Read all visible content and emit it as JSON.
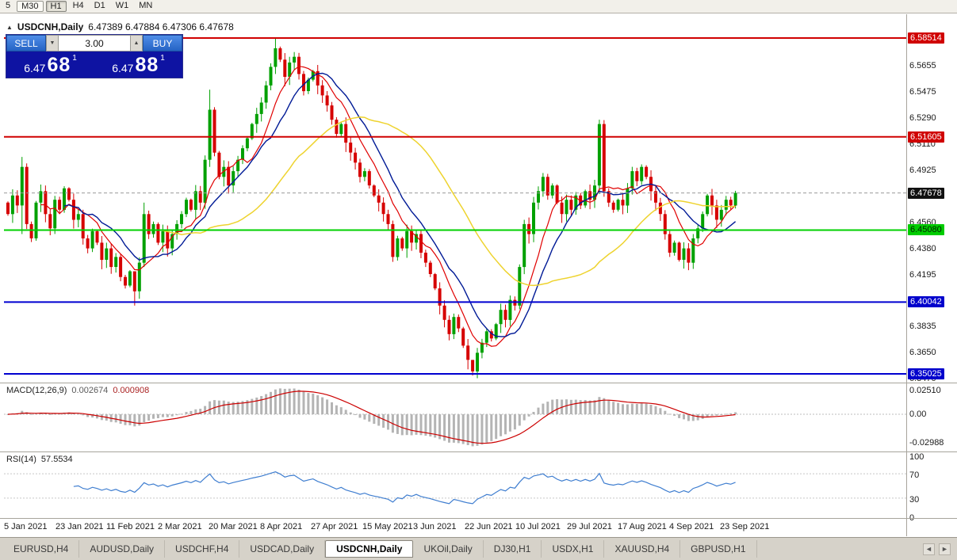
{
  "toolbar": {
    "periods": [
      {
        "label": "5"
      },
      {
        "label": "M30",
        "boxed": true
      },
      {
        "label": "H1",
        "boxed": true,
        "active": true
      },
      {
        "label": "H4"
      },
      {
        "label": "D1"
      },
      {
        "label": "W1"
      },
      {
        "label": "MN"
      }
    ]
  },
  "chart": {
    "marker": "▲",
    "symbol": "USDCNH,Daily",
    "ohlc_text": "6.47389 6.47884 6.47306 6.47678",
    "up_color": "#00A000",
    "down_color": "#D60000",
    "mas": [
      {
        "period": 8,
        "color": "#e00000",
        "width": 1.2
      },
      {
        "period": 13,
        "color": "#001a96",
        "width": 1.4
      },
      {
        "period": 34,
        "color": "#eed32e",
        "width": 1.5
      }
    ],
    "levels": [
      {
        "value": 6.58514,
        "color": "#d00000",
        "width": 2
      },
      {
        "value": 6.51605,
        "color": "#d00000",
        "width": 2
      },
      {
        "value": 6.4508,
        "color": "#00d000",
        "width": 2
      },
      {
        "value": 6.40042,
        "color": "#0000d0",
        "width": 2
      },
      {
        "value": 6.35025,
        "color": "#0000d0",
        "width": 2
      },
      {
        "value": 6.47678,
        "color": "#9a9a9a",
        "width": 1,
        "dash": "4,3"
      }
    ]
  },
  "order_panel": {
    "sell_label": "SELL",
    "buy_label": "BUY",
    "spread": "3.00",
    "step_down_icon": "▼",
    "step_up_icon": "▲",
    "sell_big": "6.47",
    "sell_pips": "68",
    "sell_sup": "1",
    "buy_big": "6.47",
    "buy_pips": "88",
    "buy_sup": "1"
  },
  "price_axis": {
    "ticks": [
      {
        "v": 6.5655,
        "label": "6.5655"
      },
      {
        "v": 6.5475,
        "label": "6.5475"
      },
      {
        "v": 6.529,
        "label": "6.5290"
      },
      {
        "v": 6.511,
        "label": "6.5110"
      },
      {
        "v": 6.4925,
        "label": "6.4925"
      },
      {
        "v": 6.456,
        "label": "6.4560"
      },
      {
        "v": 6.438,
        "label": "6.4380"
      },
      {
        "v": 6.4195,
        "label": "6.4195"
      },
      {
        "v": 6.3835,
        "label": "6.3835"
      },
      {
        "v": 6.365,
        "label": "6.3650"
      },
      {
        "v": 6.347,
        "label": "6.3470"
      }
    ],
    "badges": [
      {
        "v": 6.58514,
        "label": "6.58514",
        "bg": "#d00000",
        "fg": "#ffffff"
      },
      {
        "v": 6.51605,
        "label": "6.51605",
        "bg": "#d00000",
        "fg": "#ffffff"
      },
      {
        "v": 6.47678,
        "label": "6.47678",
        "bg": "#111111",
        "fg": "#ffffff"
      },
      {
        "v": 6.4508,
        "label": "6.45080",
        "bg": "#00cc00",
        "fg": "#002200"
      },
      {
        "v": 6.40042,
        "label": "6.40042",
        "bg": "#0000cc",
        "fg": "#ffffff"
      },
      {
        "v": 6.35025,
        "label": "6.35025",
        "bg": "#0000cc",
        "fg": "#ffffff"
      }
    ]
  },
  "chart_data": {
    "type": "candlestick",
    "symbol": "USDCNH",
    "timeframe": "Daily",
    "first_open": 6.47,
    "closes": [
      6.462,
      6.475,
      6.468,
      6.495,
      6.455,
      6.445,
      6.47,
      6.478,
      6.462,
      6.452,
      6.472,
      6.465,
      6.48,
      6.472,
      6.458,
      6.462,
      6.445,
      6.438,
      6.45,
      6.442,
      6.43,
      6.438,
      6.425,
      6.432,
      6.418,
      6.412,
      6.422,
      6.408,
      6.428,
      6.462,
      6.448,
      6.455,
      6.442,
      6.45,
      6.438,
      6.448,
      6.455,
      6.462,
      6.472,
      6.465,
      6.478,
      6.47,
      6.5,
      6.535,
      6.505,
      6.488,
      6.495,
      6.482,
      6.492,
      6.5,
      6.508,
      6.515,
      6.525,
      6.532,
      6.54,
      6.552,
      6.565,
      6.578,
      6.57,
      6.558,
      6.568,
      6.572,
      6.56,
      6.548,
      6.556,
      6.562,
      6.552,
      6.545,
      6.538,
      6.528,
      6.518,
      6.525,
      6.512,
      6.505,
      6.498,
      6.488,
      6.492,
      6.482,
      6.475,
      6.47,
      6.462,
      6.455,
      6.432,
      6.445,
      6.438,
      6.45,
      6.442,
      6.448,
      6.435,
      6.428,
      6.42,
      6.41,
      6.398,
      6.388,
      6.378,
      6.39,
      6.382,
      6.37,
      6.36,
      6.352,
      6.365,
      6.372,
      6.38,
      6.375,
      6.385,
      6.395,
      6.388,
      6.402,
      6.398,
      6.425,
      6.455,
      6.448,
      6.47,
      6.478,
      6.488,
      6.475,
      6.482,
      6.47,
      6.462,
      6.472,
      6.465,
      6.475,
      6.468,
      6.478,
      6.472,
      6.482,
      6.525,
      6.478,
      6.47,
      6.465,
      6.472,
      6.468,
      6.48,
      6.492,
      6.485,
      6.495,
      6.488,
      6.478,
      6.47,
      6.462,
      6.448,
      6.435,
      6.442,
      6.43,
      6.438,
      6.428,
      6.445,
      6.452,
      6.462,
      6.475,
      6.468,
      6.458,
      6.465,
      6.472,
      6.468,
      6.4768
    ],
    "wick_overrides": {
      "3": [
        6.502,
        6.448
      ],
      "27": [
        6.415,
        6.398
      ],
      "29": [
        6.47,
        6.425
      ],
      "43": [
        6.549,
        6.495
      ],
      "57": [
        6.5851,
        6.56
      ],
      "99": [
        6.36,
        6.349
      ],
      "110": [
        6.458,
        6.42
      ],
      "126": [
        6.528,
        6.476
      ]
    }
  },
  "macd": {
    "label": "MACD(12,26,9)",
    "v1": "0.002674",
    "v2": "0.000908",
    "axis": [
      {
        "v": 0.0251,
        "label": "0.02510"
      },
      {
        "v": 0,
        "label": "0.00"
      },
      {
        "v": -0.02988,
        "label": "-0.02988"
      }
    ]
  },
  "rsi": {
    "label": "RSI(14)",
    "value": "57.5534",
    "levels": [
      70,
      30
    ],
    "axis": [
      {
        "v": 100,
        "label": "100"
      },
      {
        "v": 70,
        "label": "70"
      },
      {
        "v": 30,
        "label": "30"
      },
      {
        "v": 0,
        "label": "0"
      }
    ]
  },
  "date_axis": {
    "labels": [
      "5 Jan 2021",
      "23 Jan 2021",
      "11 Feb 2021",
      "2 Mar 2021",
      "20 Mar 2021",
      "8 Apr 2021",
      "27 Apr 2021",
      "15 May 2021",
      "3 Jun 2021",
      "22 Jun 2021",
      "10 Jul 2021",
      "29 Jul 2021",
      "17 Aug 2021",
      "4 Sep 2021",
      "23 Sep 2021"
    ]
  },
  "tabs": {
    "items": [
      {
        "label": "EURUSD,H4"
      },
      {
        "label": "AUDUSD,Daily"
      },
      {
        "label": "USDCHF,H4"
      },
      {
        "label": "USDCAD,Daily"
      },
      {
        "label": "USDCNH,Daily"
      },
      {
        "label": "UKOil,Daily"
      },
      {
        "label": "DJ30,H1"
      },
      {
        "label": "USDX,H1"
      },
      {
        "label": "XAUUSD,H4"
      },
      {
        "label": "GBPUSD,H1"
      }
    ],
    "active_index": 4,
    "scroll_left": "◄",
    "scroll_right": "►"
  }
}
